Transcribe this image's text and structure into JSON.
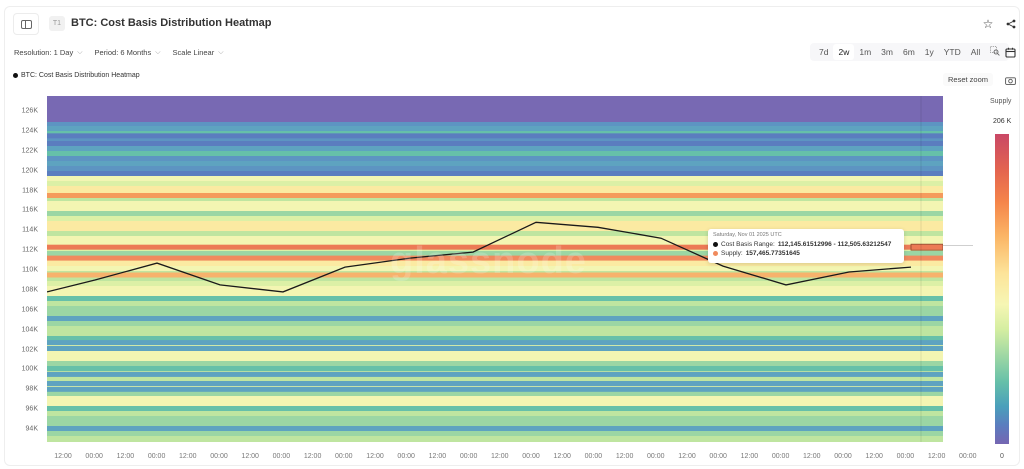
{
  "header": {
    "badge": "T1",
    "title": "BTC: Cost Basis Distribution Heatmap",
    "star_icon": "☆",
    "share_icon": "⋖"
  },
  "controls": {
    "resolution": "Resolution: 1 Day",
    "period": "Period: 6 Months",
    "scale": "Scale Linear"
  },
  "ranges": [
    "7d",
    "2w",
    "1m",
    "3m",
    "6m",
    "1y",
    "YTD",
    "All"
  ],
  "active_range": "2w",
  "reset_zoom": "Reset zoom",
  "legend": {
    "series": "BTC: Cost Basis Distribution Heatmap"
  },
  "watermark": "glassnode",
  "colorbar": {
    "title": "Supply",
    "max": "206 K",
    "min": "0"
  },
  "tooltip": {
    "date": "Saturday, Nov 01 2025 UTC",
    "range_label": "Cost Basis Range:",
    "range_value": "112,145.61512996 - 112,505.63212547",
    "supply_label": "Supply:",
    "supply_value": "157,465.77351645",
    "supply_color": "#f08a5d"
  },
  "chart_data": {
    "type": "heatmap",
    "title": "BTC: Cost Basis Distribution Heatmap",
    "xlabel": "",
    "ylabel": "",
    "y_ticks": [
      "126K",
      "124K",
      "122K",
      "120K",
      "118K",
      "116K",
      "114K",
      "112K",
      "110K",
      "108K",
      "106K",
      "104K",
      "102K",
      "100K",
      "98K",
      "96K",
      "94K"
    ],
    "x_ticks": [
      "12:00",
      "00:00",
      "12:00",
      "00:00",
      "12:00",
      "00:00",
      "12:00",
      "00:00",
      "12:00",
      "00:00",
      "12:00",
      "00:00",
      "12:00",
      "00:00",
      "12:00",
      "00:00",
      "12:00",
      "00:00",
      "12:00",
      "00:00",
      "12:00",
      "00:00",
      "12:00",
      "00:00",
      "12:00",
      "00:00",
      "12:00",
      "00:00",
      "12:00",
      "00:00"
    ],
    "ylim": [
      93000,
      127500
    ],
    "colorscale": {
      "label": "Supply",
      "min": 0,
      "max": 206000,
      "palette": "Spectral (purple=low, red=high)"
    },
    "notable_bands": [
      {
        "price": 117500,
        "level": "high",
        "color": "#f59a5c"
      },
      {
        "price": 112300,
        "level": "highest",
        "color": "#ec7a55"
      },
      {
        "price": 111200,
        "level": "high",
        "color": "#f08a5d"
      },
      {
        "price": 109500,
        "level": "medium-high",
        "color": "#f7b26c"
      },
      {
        "price": 102700,
        "level": "low",
        "color": "#5ea3c0"
      },
      {
        "price": 99500,
        "level": "low",
        "color": "#5ea3c0"
      },
      {
        "price": 98000,
        "level": "low",
        "color": "#5ea3c0"
      },
      {
        "price": 123500,
        "level": "very-low",
        "color": "#5b7dbf"
      },
      {
        "price": 126000,
        "level": "lowest",
        "color": "#7869b3"
      }
    ],
    "series": [
      {
        "name": "BTC Price",
        "type": "line",
        "color": "#1a1a1a",
        "x_index": [
          0,
          1,
          2,
          3,
          4,
          5,
          6,
          7,
          8,
          9,
          10,
          11,
          12,
          13,
          14
        ],
        "values": [
          107800,
          109000,
          110700,
          108500,
          107800,
          110300,
          111200,
          111800,
          114800,
          114300,
          113200,
          110400,
          108500,
          109800,
          110300
        ]
      }
    ],
    "tooltip_point": {
      "date": "Saturday, Nov 01 2025 UTC",
      "range": [
        112145.61512996,
        112505.63212547
      ],
      "supply": 157465.77351645
    }
  }
}
